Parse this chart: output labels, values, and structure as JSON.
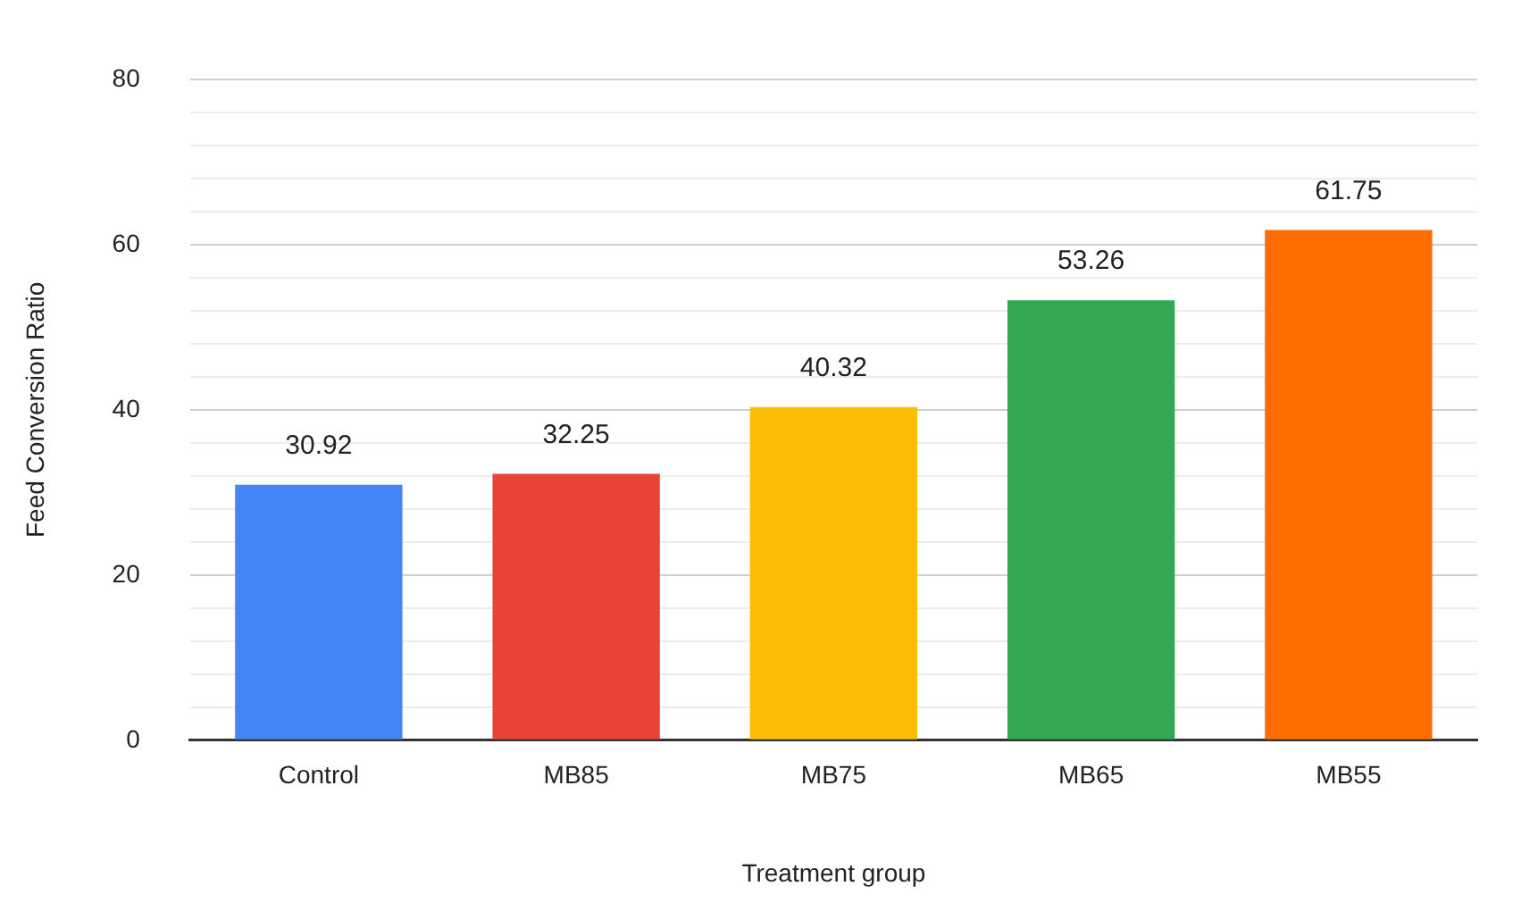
{
  "chart_data": {
    "type": "bar",
    "xlabel": "Treatment group",
    "ylabel": "Feed Conversion Ratio",
    "categories": [
      "Control",
      "MB85",
      "MB75",
      "MB65",
      "MB55"
    ],
    "values": [
      30.92,
      32.25,
      40.32,
      53.26,
      61.75
    ],
    "colors": [
      "#4285f4",
      "#ea4335",
      "#fbbc04",
      "#34a853",
      "#ff6d01"
    ],
    "ylim": [
      0,
      80
    ],
    "yticks": [
      0,
      {
        "value": 4,
        "label": null
      },
      {
        "value": 8,
        "label": null
      },
      {
        "value": 12,
        "label": null
      },
      {
        "value": 16,
        "label": null
      },
      20,
      {
        "value": 24,
        "label": null
      },
      {
        "value": 28,
        "label": null
      },
      {
        "value": 32,
        "label": null
      },
      {
        "value": 36,
        "label": null
      },
      40,
      {
        "value": 44,
        "label": null
      },
      {
        "value": 48,
        "label": null
      },
      {
        "value": 52,
        "label": null
      },
      {
        "value": 56,
        "label": null
      },
      60,
      {
        "value": 64,
        "label": null
      },
      {
        "value": 68,
        "label": null
      },
      {
        "value": 72,
        "label": null
      },
      {
        "value": 76,
        "label": null
      },
      80
    ],
    "grid": "y",
    "data_labels": true,
    "legend": false
  }
}
